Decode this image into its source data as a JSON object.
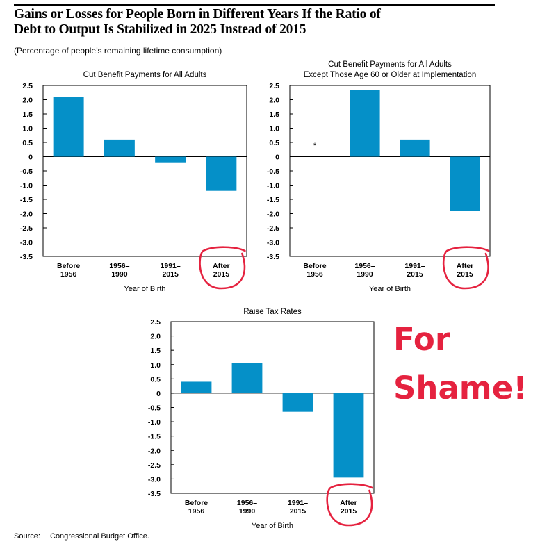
{
  "header": {
    "title_line1": "Gains or Losses for People Born in Different Years If the Ratio of",
    "title_line2": "Debt to Output Is Stabilized in 2025 Instead of 2015",
    "subtitle": "(Percentage of people’s remaining lifetime consumption)"
  },
  "source": {
    "label": "Source:",
    "text": "Congressional Budget Office."
  },
  "annotation": {
    "line1": "For",
    "line2": "Shame!",
    "color": "#e5223f"
  },
  "colors": {
    "bar": "#0590c8",
    "circle": "#e5223f"
  },
  "chart_data": [
    {
      "type": "bar",
      "title": [
        "Cut Benefit Payments for All Adults"
      ],
      "xlabel": "Year of Birth",
      "ylabel": "",
      "ylim": [
        -3.5,
        2.5
      ],
      "yticks": [
        2.5,
        2.0,
        1.5,
        1.0,
        0.5,
        0,
        -0.5,
        -1.0,
        -1.5,
        -2.0,
        -2.5,
        -3.0,
        -3.5
      ],
      "ytick_labels": [
        "2.5",
        "2.0",
        "1.5",
        "1.0",
        "0.5",
        "0",
        "-0.5",
        "-1.0",
        "-1.5",
        "-2.0",
        "-2.5",
        "-3.0",
        "-3.5"
      ],
      "categories": [
        [
          "Before",
          "1956"
        ],
        [
          "1956–",
          "1990"
        ],
        [
          "1991–",
          "2015"
        ],
        [
          "After",
          "2015"
        ]
      ],
      "values": [
        2.1,
        0.6,
        -0.2,
        -1.2
      ],
      "circled_category": 3
    },
    {
      "type": "bar",
      "title": [
        "Cut Benefit Payments for All Adults",
        "Except Those Age 60 or Older at Implementation"
      ],
      "xlabel": "Year of Birth",
      "ylabel": "",
      "ylim": [
        -3.5,
        2.5
      ],
      "yticks": [
        2.5,
        2.0,
        1.5,
        1.0,
        0.5,
        0,
        -0.5,
        -1.0,
        -1.5,
        -2.0,
        -2.5,
        -3.0,
        -3.5
      ],
      "ytick_labels": [
        "2.5",
        "2.0",
        "1.5",
        "1.0",
        "0.5",
        "0",
        "-0.5",
        "-1.0",
        "-1.5",
        "-2.0",
        "-2.5",
        "-3.0",
        "-3.5"
      ],
      "categories": [
        [
          "Before",
          "1956"
        ],
        [
          "1956–",
          "1990"
        ],
        [
          "1991–",
          "2015"
        ],
        [
          "After",
          "2015"
        ]
      ],
      "values": [
        null,
        2.35,
        0.6,
        -1.9
      ],
      "markers": [
        "*",
        null,
        null,
        null
      ],
      "circled_category": 3
    },
    {
      "type": "bar",
      "title": [
        "Raise Tax Rates"
      ],
      "xlabel": "Year of Birth",
      "ylabel": "",
      "ylim": [
        -3.5,
        2.5
      ],
      "yticks": [
        2.5,
        2.0,
        1.5,
        1.0,
        0.5,
        0,
        -0.5,
        -1.0,
        -1.5,
        -2.0,
        -2.5,
        -3.0,
        -3.5
      ],
      "ytick_labels": [
        "2.5",
        "2.0",
        "1.5",
        "1.0",
        "0.5",
        "0",
        "-0.5",
        "-1.0",
        "-1.5",
        "-2.0",
        "-2.5",
        "-3.0",
        "-3.5"
      ],
      "categories": [
        [
          "Before",
          "1956"
        ],
        [
          "1956–",
          "1990"
        ],
        [
          "1991–",
          "2015"
        ],
        [
          "After",
          "2015"
        ]
      ],
      "values": [
        0.4,
        1.05,
        -0.65,
        -2.95
      ],
      "circled_category": 3
    }
  ]
}
